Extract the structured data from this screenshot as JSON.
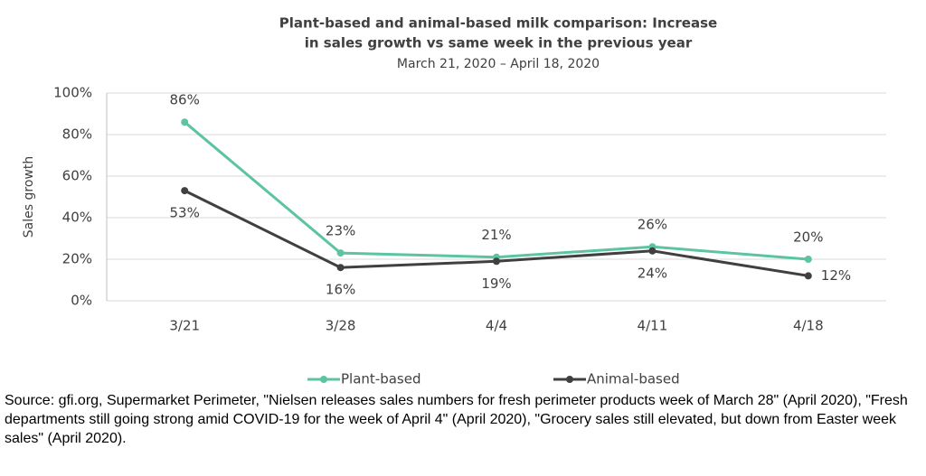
{
  "chart_data": {
    "type": "line",
    "title": [
      "Plant-based and animal-based milk comparison: Increase",
      "in sales growth vs same week in the previous year"
    ],
    "subtitle": "March 21, 2020 – April 18, 2020",
    "y_label": "Sales growth",
    "categories": [
      "3/21",
      "3/28",
      "4/4",
      "4/11",
      "4/18"
    ],
    "series": [
      {
        "name": "Plant-based",
        "color": "#5cc4a2",
        "values": [
          86,
          23,
          21,
          26,
          20
        ],
        "value_labels": [
          "86%",
          "23%",
          "21%",
          "26%",
          "20%"
        ]
      },
      {
        "name": "Animal-based",
        "color": "#404040",
        "values": [
          53,
          16,
          19,
          24,
          12
        ],
        "value_labels": [
          "53%",
          "16%",
          "19%",
          "24%",
          "12%"
        ]
      }
    ],
    "ylim": [
      0,
      100
    ],
    "yticks": [
      {
        "value": 0,
        "label": "0%"
      },
      {
        "value": 20,
        "label": "20%"
      },
      {
        "value": 40,
        "label": "40%"
      },
      {
        "value": 60,
        "label": "60%"
      },
      {
        "value": 80,
        "label": "80%"
      },
      {
        "value": 100,
        "label": "100%"
      }
    ],
    "grid": true,
    "legend": "bottom"
  },
  "source": "Source: gfi.org, Supermarket Perimeter, \"Nielsen releases sales numbers for fresh perimeter products week of March 28\" (April 2020), \"Fresh departments still going strong amid COVID-19 for the week of April 4\" (April 2020), \"Grocery sales still elevated, but down from Easter week sales\" (April 2020)."
}
